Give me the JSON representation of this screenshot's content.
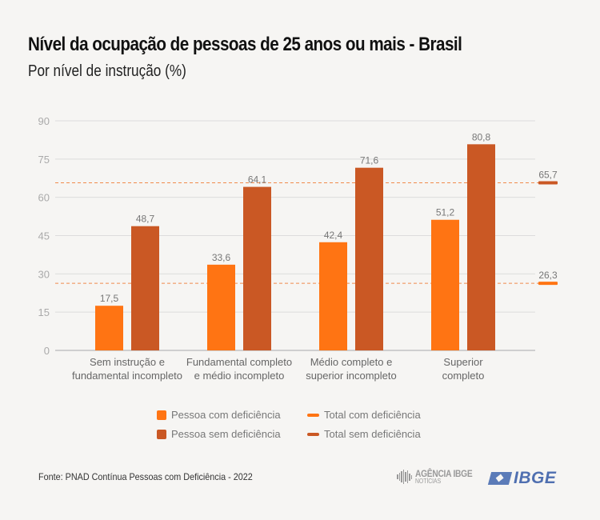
{
  "header": {
    "title": "Nível da ocupação de pessoas de 25 anos ou mais - Brasil",
    "subtitle": "Por nível de instrução (%)"
  },
  "colors": {
    "com_deficiencia": "#ff7413",
    "sem_deficiencia": "#ca5824",
    "grid": "#dcdcdc",
    "background": "#f6f5f3"
  },
  "chart_data": {
    "type": "bar",
    "title": "Nível da ocupação de pessoas de 25 anos ou mais - Brasil",
    "subtitle": "Por nível de instrução (%)",
    "xlabel": "",
    "ylabel": "",
    "ylim": [
      0,
      90
    ],
    "yticks": [
      0,
      15,
      30,
      45,
      60,
      75,
      90
    ],
    "grid": true,
    "legend_position": "bottom",
    "categories": [
      [
        "Sem instrução e",
        "fundamental incompleto"
      ],
      [
        "Fundamental completo",
        "e médio incompleto"
      ],
      [
        "Médio completo e",
        "superior incompleto"
      ],
      [
        "Superior",
        "completo"
      ]
    ],
    "series": [
      {
        "name": "Pessoa com deficiência",
        "values": [
          17.5,
          33.6,
          42.4,
          51.2
        ],
        "labels": [
          "17,5",
          "33,6",
          "42,4",
          "51,2"
        ]
      },
      {
        "name": "Pessoa sem deficiência",
        "values": [
          48.7,
          64.1,
          71.6,
          80.8
        ],
        "labels": [
          "48,7",
          "64,1",
          "71,6",
          "80,8"
        ]
      }
    ],
    "reference_lines": [
      {
        "name": "Total com deficiência",
        "value": 26.3,
        "label": "26,3"
      },
      {
        "name": "Total sem deficiência",
        "value": 65.7,
        "label": "65,7"
      }
    ]
  },
  "legend": {
    "items": [
      {
        "label": "Pessoa com deficiência",
        "kind": "swatch"
      },
      {
        "label": "Pessoa sem deficiência",
        "kind": "swatch"
      },
      {
        "label": "Total com deficiência",
        "kind": "line"
      },
      {
        "label": "Total sem deficiência",
        "kind": "line"
      }
    ]
  },
  "footer": {
    "source": "Fonte: PNAD Contínua Pessoas com Deficiência - 2022",
    "agencia_line1": "AGÊNCIA IBGE",
    "agencia_line2": "NOTÍCIAS",
    "ibge_logo": "IBGE"
  }
}
